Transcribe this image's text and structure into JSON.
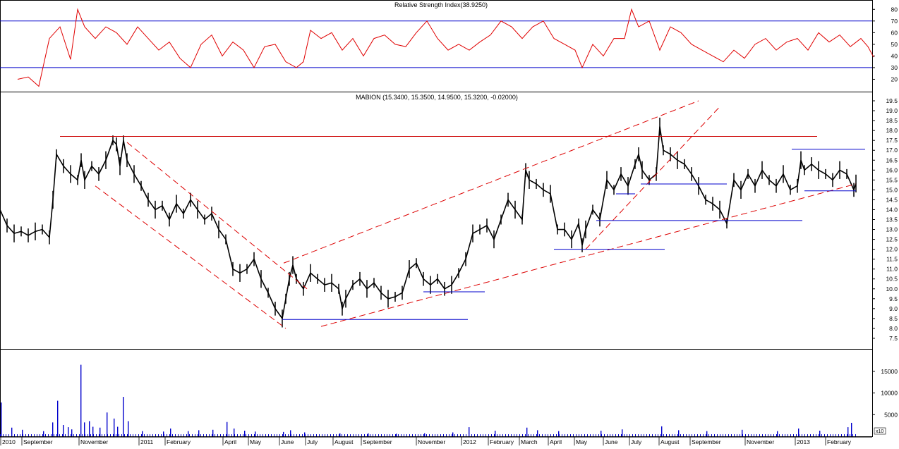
{
  "chart_data": [
    {
      "type": "line",
      "panel": "rsi",
      "title": "Relative Strength Index(38.9250)",
      "ylim": [
        10,
        85
      ],
      "yticks": [
        20,
        30,
        40,
        50,
        60,
        70,
        80
      ],
      "reference_lines": [
        30,
        70
      ],
      "colors": {
        "line": "#e00000",
        "reference": "#0000cc"
      },
      "series": [
        {
          "x": [
            0,
            15,
            30,
            45,
            60,
            75,
            85,
            95,
            110,
            125,
            140,
            155,
            170,
            185,
            200,
            215,
            230,
            245,
            260,
            275,
            290,
            305,
            320,
            335,
            350,
            365,
            380,
            395,
            405,
            415,
            430,
            445,
            460,
            475,
            490,
            505,
            520,
            535,
            550,
            565,
            580,
            595,
            610,
            625,
            640,
            655,
            670,
            685,
            700,
            715,
            730,
            745,
            760,
            775,
            790,
            800,
            815,
            830,
            845,
            860,
            870,
            880,
            895,
            910,
            925,
            940,
            955,
            970,
            985,
            1000,
            1015,
            1030,
            1045,
            1060,
            1075,
            1090,
            1105,
            1120,
            1135,
            1150,
            1165,
            1180,
            1195,
            1205,
            1213
          ],
          "values": [
            20,
            22,
            14,
            55,
            65,
            37,
            80,
            65,
            55,
            65,
            60,
            50,
            65,
            55,
            45,
            52,
            38,
            30,
            50,
            58,
            40,
            52,
            45,
            30,
            48,
            50,
            35,
            30,
            35,
            62,
            55,
            60,
            45,
            55,
            40,
            55,
            58,
            50,
            48,
            60,
            70,
            55,
            45,
            50,
            45,
            52,
            58,
            70,
            65,
            55,
            65,
            70,
            55,
            50,
            45,
            30,
            50,
            40,
            55,
            55,
            80,
            65,
            70,
            45,
            65,
            60,
            50,
            45,
            40,
            35,
            45,
            38,
            50,
            55,
            45,
            52,
            55,
            45,
            60,
            52,
            58,
            48,
            55,
            48,
            39
          ]
        }
      ]
    },
    {
      "type": "line",
      "panel": "price",
      "title": "MABION (15.3400, 15.3500, 14.9500, 15.3200, -0.02000)",
      "ylim": [
        7.0,
        19.75
      ],
      "yticks": [
        7.5,
        8.0,
        8.5,
        9.0,
        9.5,
        10.0,
        10.5,
        11.0,
        11.5,
        12.0,
        12.5,
        13.0,
        13.5,
        14.0,
        14.5,
        15.0,
        15.5,
        16.0,
        16.5,
        17.0,
        17.5,
        18.0,
        18.5,
        19.0,
        19.5
      ],
      "colors": {
        "bars": "#000000",
        "trendline": "#dd0000",
        "support": "#0000cc",
        "resistance": "#cc0000"
      },
      "series": [
        {
          "name": "MABION",
          "x": [
            0,
            10,
            20,
            30,
            40,
            50,
            60,
            70,
            75,
            80,
            90,
            100,
            110,
            115,
            120,
            130,
            140,
            150,
            160,
            165,
            170,
            175,
            180,
            190,
            200,
            210,
            220,
            230,
            240,
            250,
            260,
            270,
            280,
            290,
            300,
            310,
            320,
            330,
            340,
            350,
            360,
            370,
            380,
            390,
            400,
            405,
            410,
            415,
            420,
            430,
            440,
            450,
            460,
            470,
            480,
            485,
            490,
            500,
            510,
            520,
            530,
            540,
            550,
            560,
            570,
            580,
            590,
            600,
            610,
            620,
            630,
            640,
            650,
            660,
            670,
            680,
            690,
            700,
            710,
            720,
            730,
            740,
            745,
            750,
            760,
            770,
            780,
            790,
            800,
            810,
            820,
            825,
            830,
            840,
            850,
            860,
            870,
            880,
            890,
            900,
            905,
            910,
            920,
            930,
            935,
            940,
            950,
            960,
            970,
            980,
            990,
            1000,
            1010,
            1020,
            1030,
            1040,
            1050,
            1060,
            1070,
            1080,
            1090,
            1100,
            1110,
            1120,
            1130,
            1135,
            1140,
            1150,
            1160,
            1170,
            1180,
            1190,
            1200,
            1210,
            1213
          ],
          "values": [
            14.0,
            13.2,
            12.8,
            12.9,
            12.7,
            12.9,
            13.0,
            12.6,
            14.5,
            16.8,
            16.2,
            15.8,
            15.5,
            16.5,
            15.5,
            16.2,
            15.8,
            16.5,
            17.5,
            17.3,
            16.2,
            17.5,
            16.5,
            15.8,
            15.2,
            14.5,
            14.0,
            14.2,
            13.5,
            14.3,
            13.8,
            14.5,
            14.0,
            13.5,
            13.8,
            13.0,
            12.5,
            11.0,
            10.8,
            11.0,
            11.5,
            10.5,
            9.8,
            9.0,
            8.5,
            9.5,
            10.5,
            11.2,
            10.5,
            10.0,
            10.8,
            10.5,
            10.2,
            10.3,
            10.0,
            9.0,
            9.5,
            10.2,
            10.5,
            10.0,
            10.3,
            9.8,
            9.5,
            9.6,
            9.8,
            11.0,
            11.3,
            10.5,
            10.2,
            10.5,
            10.0,
            10.2,
            10.8,
            11.5,
            12.8,
            13.0,
            13.2,
            12.5,
            13.5,
            14.5,
            14.0,
            13.5,
            16.0,
            15.5,
            15.3,
            15.0,
            14.8,
            13.0,
            13.0,
            12.5,
            13.3,
            12.2,
            13.0,
            14.0,
            13.5,
            15.5,
            15.0,
            15.8,
            15.2,
            16.3,
            16.8,
            16.0,
            15.5,
            15.8,
            18.2,
            17.0,
            16.8,
            16.5,
            16.3,
            15.8,
            15.2,
            14.5,
            14.3,
            14.0,
            13.3,
            15.5,
            15.0,
            15.8,
            15.2,
            16.0,
            15.5,
            15.2,
            15.8,
            15.0,
            15.2,
            16.5,
            16.0,
            16.3,
            16.0,
            15.8,
            15.5,
            16.0,
            15.8,
            15.0,
            15.32
          ]
        }
      ],
      "lines": [
        {
          "color": "#cc0000",
          "style": "solid",
          "points": [
            [
              85,
              17.7
            ],
            [
              1158,
              17.7
            ]
          ]
        },
        {
          "color": "#dd0000",
          "style": "dashed",
          "points": [
            [
              180,
              17.4
            ],
            [
              435,
              10.0
            ]
          ]
        },
        {
          "color": "#dd0000",
          "style": "dashed",
          "points": [
            [
              135,
              15.2
            ],
            [
              405,
              8.0
            ]
          ]
        },
        {
          "color": "#dd0000",
          "style": "dashed",
          "points": [
            [
              402,
              11.3
            ],
            [
              990,
              19.5
            ]
          ]
        },
        {
          "color": "#dd0000",
          "style": "dashed",
          "points": [
            [
              455,
              8.1
            ],
            [
              1213,
              15.3
            ]
          ]
        },
        {
          "color": "#dd0000",
          "style": "dashed",
          "points": [
            [
              830,
              12.0
            ],
            [
              1020,
              19.2
            ]
          ]
        },
        {
          "color": "#0000cc",
          "style": "solid",
          "points": [
            [
              400,
              8.45
            ],
            [
              663,
              8.45
            ]
          ]
        },
        {
          "color": "#0000cc",
          "style": "solid",
          "points": [
            [
              600,
              9.85
            ],
            [
              687,
              9.85
            ]
          ]
        },
        {
          "color": "#0000cc",
          "style": "solid",
          "points": [
            [
              785,
              12.0
            ],
            [
              942,
              12.0
            ]
          ]
        },
        {
          "color": "#0000cc",
          "style": "solid",
          "points": [
            [
              845,
              13.45
            ],
            [
              1137,
              13.45
            ]
          ]
        },
        {
          "color": "#0000cc",
          "style": "solid",
          "points": [
            [
              873,
              14.8
            ],
            [
              900,
              14.8
            ]
          ]
        },
        {
          "color": "#0000cc",
          "style": "solid",
          "points": [
            [
              908,
              15.3
            ],
            [
              1030,
              15.3
            ]
          ]
        },
        {
          "color": "#0000cc",
          "style": "solid",
          "points": [
            [
              1140,
              14.95
            ],
            [
              1213,
              14.95
            ]
          ]
        },
        {
          "color": "#0000cc",
          "style": "solid",
          "points": [
            [
              1122,
              17.05
            ],
            [
              1226,
              17.05
            ]
          ]
        }
      ]
    },
    {
      "type": "bar",
      "panel": "volume",
      "ylim": [
        0,
        20000
      ],
      "yticks": [
        5000,
        10000,
        15000
      ],
      "unit_label": "x10",
      "colors": {
        "bars": "#0000cc"
      },
      "series": [
        {
          "x": [
            0,
            15,
            30,
            60,
            73,
            80,
            88,
            95,
            100,
            113,
            118,
            125,
            130,
            140,
            150,
            160,
            165,
            173,
            180,
            200,
            230,
            240,
            265,
            280,
            300,
            320,
            330,
            345,
            360,
            400,
            410,
            430,
            480,
            520,
            560,
            600,
            640,
            663,
            700,
            745,
            760,
            790,
            850,
            880,
            936,
            960,
            1000,
            1050,
            1100,
            1130,
            1160,
            1200,
            1205
          ],
          "values": [
            7800,
            2000,
            1500,
            1200,
            3200,
            8200,
            2600,
            2100,
            1600,
            16500,
            3200,
            3500,
            2200,
            2000,
            5500,
            4100,
            2200,
            9100,
            3500,
            1200,
            1100,
            1800,
            1200,
            1400,
            1500,
            3300,
            1800,
            1300,
            1100,
            1000,
            1400,
            900,
            700,
            700,
            600,
            700,
            900,
            2100,
            1300,
            2000,
            1400,
            1200,
            1300,
            1600,
            2300,
            1400,
            1200,
            1500,
            1200,
            1800,
            1300,
            2100,
            3100
          ]
        }
      ]
    }
  ],
  "x_axis": {
    "labels": [
      "2010",
      "September",
      "November",
      "2011",
      "February",
      "April",
      "May",
      "June",
      "July",
      "August",
      "September",
      "November",
      "2012",
      "February",
      "March",
      "April",
      "May",
      "June",
      "July",
      "August",
      "September",
      "November",
      "2013",
      "February"
    ]
  }
}
